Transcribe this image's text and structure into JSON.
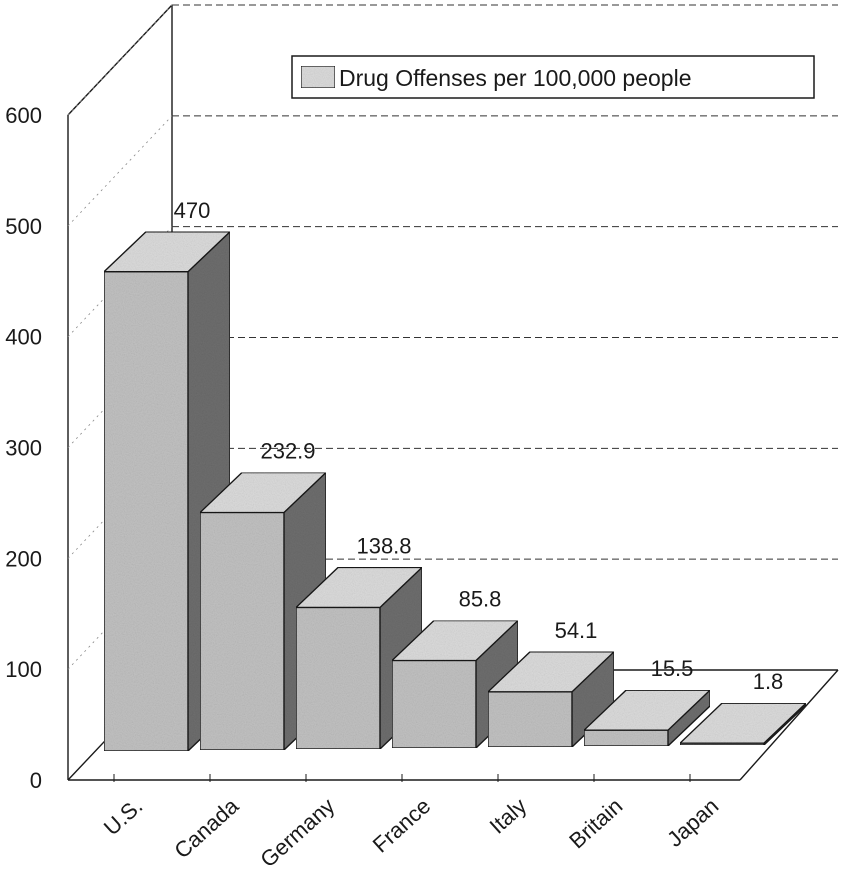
{
  "chart_data": {
    "type": "bar",
    "categories": [
      "U.S.",
      "Canada",
      "Germany",
      "France",
      "Italy",
      "Britain",
      "Japan"
    ],
    "series": [
      {
        "name": "Drug Offenses per 100,000 people",
        "values": [
          470,
          232.9,
          138.8,
          85.8,
          54.1,
          15.5,
          1.8
        ],
        "labels": [
          "470",
          "232.9",
          "138.8",
          "85.8",
          "54.1",
          "15.5",
          "1.8"
        ]
      }
    ],
    "yticks": [
      "0",
      "100",
      "200",
      "300",
      "400",
      "500",
      "600"
    ],
    "ylim": [
      0,
      600
    ],
    "grid": true,
    "legend_position": "top-right",
    "three_d": true,
    "colors": {
      "front": "#c2c2c2",
      "top": "#dcdcdc",
      "side": "#6e6e6e",
      "grid": "#333333"
    }
  }
}
